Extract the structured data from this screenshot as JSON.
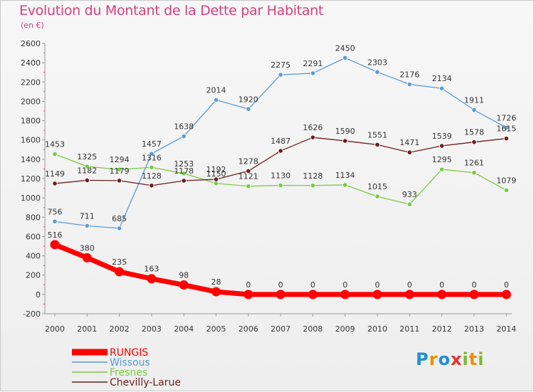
{
  "title": "Evolution du Montant de la Dette par Habitant",
  "unit_label": "(en €)",
  "logo_text": "Proxiti",
  "chart_data": {
    "type": "line",
    "title": "Evolution du Montant de la Dette par Habitant",
    "subtitle": "(en €)",
    "xlabel": "",
    "ylabel": "",
    "categories": [
      "2000",
      "2001",
      "2002",
      "2003",
      "2004",
      "2005",
      "2006",
      "2007",
      "2008",
      "2009",
      "2010",
      "2011",
      "2012",
      "2013",
      "2014"
    ],
    "ylim": [
      -200,
      2600
    ],
    "yticks": [
      -200,
      0,
      200,
      400,
      600,
      800,
      1000,
      1200,
      1400,
      1600,
      1800,
      2000,
      2200,
      2400,
      2600
    ],
    "grid": false,
    "legend_position": "bottom-left",
    "series": [
      {
        "name": "RUNGIS",
        "color": "#ff0000",
        "values": [
          516,
          380,
          235,
          163,
          98,
          28,
          0,
          0,
          0,
          0,
          0,
          0,
          0,
          0,
          0
        ]
      },
      {
        "name": "Wissous",
        "color": "#5b9bd5",
        "values": [
          756,
          711,
          685,
          1457,
          1638,
          2014,
          1920,
          2275,
          2291,
          2450,
          2303,
          2176,
          2134,
          1911,
          1726
        ]
      },
      {
        "name": "Fresnes",
        "color": "#7ac943",
        "values": [
          1453,
          1325,
          1294,
          1316,
          1253,
          1150,
          1121,
          1130,
          1128,
          1134,
          1015,
          933,
          1295,
          1261,
          1079
        ]
      },
      {
        "name": "Chevilly-Larue",
        "color": "#6b1f1f",
        "values": [
          1149,
          1182,
          1179,
          1128,
          1178,
          1192,
          1278,
          1487,
          1626,
          1590,
          1551,
          1471,
          1539,
          1578,
          1615
        ]
      }
    ]
  }
}
